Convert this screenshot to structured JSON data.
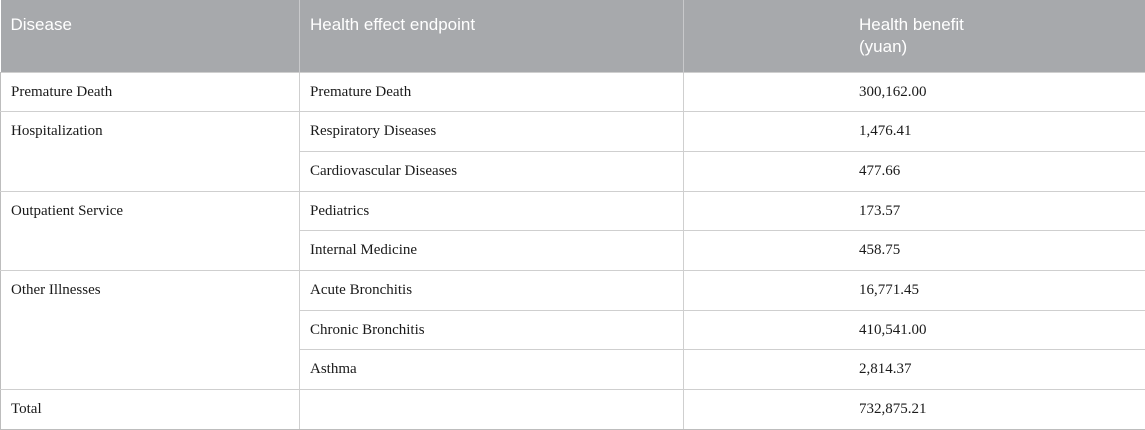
{
  "table": {
    "headers": [
      "Disease",
      "Health effect endpoint",
      "Health benefit",
      "(yuan)"
    ],
    "groups": [
      {
        "disease": "Premature Death",
        "rows": [
          {
            "endpoint": "Premature Death",
            "benefit": "300,162.00"
          }
        ]
      },
      {
        "disease": "Hospitalization",
        "rows": [
          {
            "endpoint": "Respiratory Diseases",
            "benefit": "1,476.41"
          },
          {
            "endpoint": "Cardiovascular Diseases",
            "benefit": "477.66"
          }
        ]
      },
      {
        "disease": "Outpatient Service",
        "rows": [
          {
            "endpoint": "Pediatrics",
            "benefit": "173.57"
          },
          {
            "endpoint": "Internal Medicine",
            "benefit": "458.75"
          }
        ]
      },
      {
        "disease": "Other Illnesses",
        "rows": [
          {
            "endpoint": "Acute Bronchitis",
            "benefit": "16,771.45"
          },
          {
            "endpoint": "Chronic Bronchitis",
            "benefit": "410,541.00"
          },
          {
            "endpoint": "Asthma",
            "benefit": "2,814.37"
          }
        ]
      },
      {
        "disease": "Total",
        "rows": [
          {
            "endpoint": "",
            "benefit": "732,875.21"
          }
        ]
      }
    ]
  }
}
